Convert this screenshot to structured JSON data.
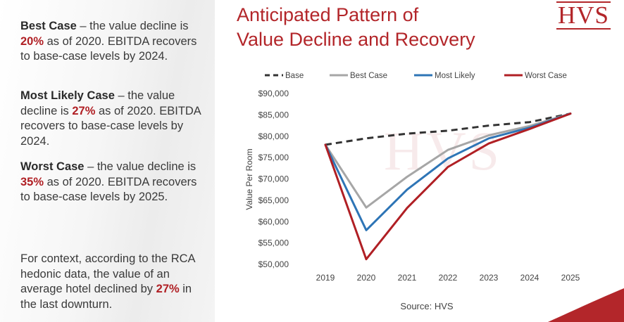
{
  "left_text": {
    "best": {
      "label": "Best Case",
      "pre": " – the value decline is ",
      "pct": "20%",
      "post": " as of 2020. EBITDA recovers to base-case levels by 2024."
    },
    "likely": {
      "label": "Most Likely Case",
      "pre": " – the value decline is ",
      "pct": "27%",
      "post": " as of 2020. EBITDA recovers to base-case levels by 2024."
    },
    "worst": {
      "label": "Worst Case",
      "pre": " – the value decline is ",
      "pct": "35%",
      "post": " as of 2020. EBITDA recovers to base-case levels by 2025."
    },
    "context": {
      "pre": "For context, according to the RCA hedonic data, the value of an average hotel declined by ",
      "pct": "27%",
      "post": " in the last downturn."
    }
  },
  "title_line1": "Anticipated Pattern of",
  "title_line2": "Value Decline and Recovery",
  "logo": "HVS",
  "watermark": "HVS",
  "colors": {
    "accent": "#b3262a",
    "base": "#333333",
    "best": "#a6a6a6",
    "likely": "#2e75b6",
    "worst": "#b01f24"
  },
  "chart_data": {
    "type": "line",
    "ylabel": "Value Per Room",
    "xlabel": "",
    "source": "Source: HVS",
    "categories": [
      "2019",
      "2020",
      "2021",
      "2022",
      "2023",
      "2024",
      "2025"
    ],
    "ylim": [
      50000,
      90000
    ],
    "yticks": [
      50000,
      55000,
      60000,
      65000,
      70000,
      75000,
      80000,
      85000,
      90000
    ],
    "ytick_labels": [
      "$50,000",
      "$55,000",
      "$60,000",
      "$65,000",
      "$70,000",
      "$75,000",
      "$80,000",
      "$85,000",
      "$90,000"
    ],
    "series": [
      {
        "name": "Base",
        "key": "base",
        "style": "dashed",
        "values": [
          78000,
          79500,
          80600,
          81300,
          82500,
          83300,
          85300
        ]
      },
      {
        "name": "Best Case",
        "key": "best",
        "style": "solid",
        "values": [
          78000,
          63300,
          70500,
          76800,
          80200,
          82400,
          85300
        ]
      },
      {
        "name": "Most Likely",
        "key": "likely",
        "style": "solid",
        "values": [
          78000,
          58000,
          67500,
          74800,
          79500,
          82000,
          85300
        ]
      },
      {
        "name": "Worst Case",
        "key": "worst",
        "style": "solid",
        "values": [
          78000,
          51200,
          63200,
          72800,
          78300,
          81700,
          85300
        ]
      }
    ]
  }
}
